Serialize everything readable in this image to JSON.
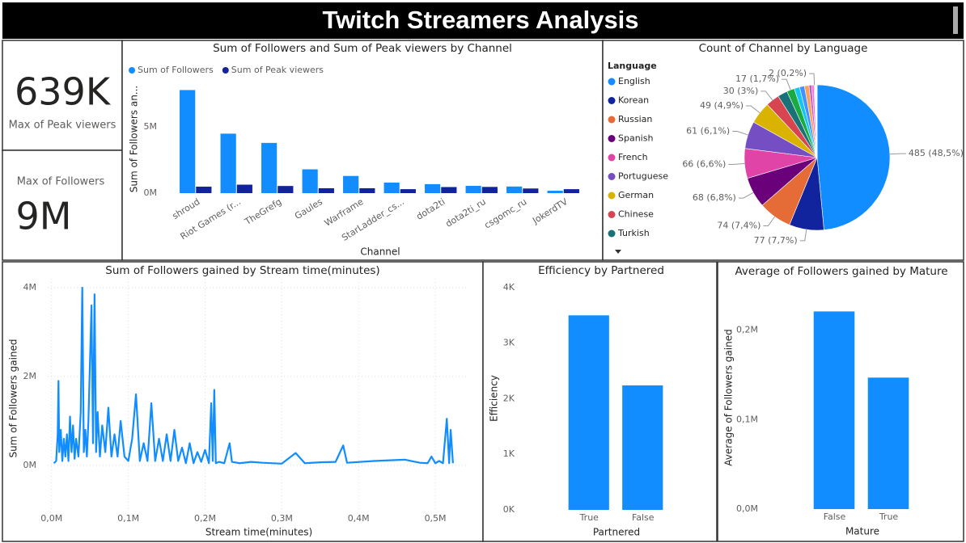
{
  "header": {
    "title": "Twitch Streamers Analysis"
  },
  "cards": [
    {
      "value": "639K",
      "label": "Max of Peak viewers"
    },
    {
      "value": "9M",
      "label": "Max of Followers"
    }
  ],
  "chart_data": [
    {
      "type": "bar",
      "title": "Sum of Followers and Sum of Peak viewers by Channel",
      "x_label": "Channel",
      "y_label": "Sum of Followers an...",
      "categories": [
        "shroud",
        "Riot Games (r...",
        "TheGrefg",
        "Gaules",
        "Warframe",
        "StarLadder_cs...",
        "dota2ti",
        "dota2ti_ru",
        "csgomc_ru",
        "JokerdTV"
      ],
      "series": [
        {
          "name": "Sum of Followers",
          "color": "#118DFF",
          "values": [
            7800000,
            4500000,
            3800000,
            1800000,
            1300000,
            800000,
            680000,
            550000,
            500000,
            180000
          ]
        },
        {
          "name": "Sum of Peak viewers",
          "color": "#12239E",
          "values": [
            490000,
            640000,
            540000,
            370000,
            370000,
            300000,
            460000,
            470000,
            350000,
            300000
          ]
        }
      ],
      "ylim": [
        0,
        8500000
      ],
      "yticks": [
        {
          "value": 0,
          "label": "0M"
        },
        {
          "value": 5000000,
          "label": "5M"
        }
      ],
      "legend": "top-left",
      "grid": false
    },
    {
      "type": "pie",
      "title": "Count of Channel by Language",
      "legend_title": "Language",
      "categories": [
        "English",
        "Korean",
        "Russian",
        "Spanish",
        "French",
        "Portuguese",
        "German",
        "Chinese",
        "Turkish",
        null,
        null,
        null,
        null,
        null,
        null,
        null,
        null,
        null,
        null,
        null,
        null
      ],
      "values": [
        485,
        77,
        74,
        68,
        66,
        61,
        49,
        30,
        22,
        17,
        12,
        11,
        10,
        6,
        5,
        2,
        1,
        1,
        1,
        1,
        1
      ],
      "value_labels": [
        "485 (48,5%)",
        "77 (7,7%)",
        "74 (7,4%)",
        "68 (6,8%)",
        "66 (6,6%)",
        "61 (6,1%)",
        "49 (4,9%)",
        "30 (3%)",
        null,
        "17 (1,7%)",
        null,
        null,
        null,
        null,
        null,
        "2 (0,2%)",
        null,
        null,
        null,
        null,
        null
      ],
      "colors": [
        "#118DFF",
        "#12239E",
        "#E66C37",
        "#6B007B",
        "#E044A7",
        "#744EC2",
        "#D9B300",
        "#D64550",
        "#197278",
        "#1AAB40",
        "#15C6F4",
        "#4092FF",
        "#FFA058",
        "#BE5DC9",
        "#F472D0",
        "#B5A1FF",
        "#C4A200",
        "#FF8080",
        "#00DBBC",
        "#5BD667",
        "#0091D5"
      ],
      "legend": "left"
    },
    {
      "type": "line",
      "title": "Sum of Followers gained by Stream time(minutes)",
      "x_label": "Stream time(minutes)",
      "y_label": "Sum of Followers gained",
      "color": "#118DFF",
      "x": [
        3000,
        6000,
        8000,
        9000,
        10000,
        12000,
        14000,
        16000,
        18000,
        20000,
        22000,
        24000,
        26000,
        28000,
        30000,
        32000,
        35000,
        38000,
        40000,
        42000,
        44000,
        46000,
        48000,
        52000,
        54000,
        56000,
        58000,
        60000,
        63000,
        66000,
        70000,
        74000,
        78000,
        82000,
        86000,
        90000,
        95000,
        100000,
        105000,
        110000,
        115000,
        120000,
        125000,
        130000,
        135000,
        140000,
        145000,
        150000,
        155000,
        160000,
        165000,
        170000,
        175000,
        180000,
        185000,
        190000,
        195000,
        200000,
        205000,
        208000,
        210000,
        212000,
        214000,
        218000,
        225000,
        232000,
        235000,
        245000,
        260000,
        275000,
        300000,
        318000,
        330000,
        350000,
        370000,
        380000,
        385000,
        420000,
        460000,
        480000,
        490000,
        495000,
        500000,
        505000,
        510000,
        515000,
        518000,
        520000,
        523000
      ],
      "values": [
        50000,
        100000,
        700000,
        1900000,
        300000,
        800000,
        100000,
        600000,
        200000,
        700000,
        100000,
        1100000,
        300000,
        900000,
        150000,
        600000,
        200000,
        1200000,
        4000000,
        300000,
        800000,
        200000,
        1000000,
        3600000,
        500000,
        3850000,
        300000,
        1200000,
        200000,
        900000,
        300000,
        1300000,
        200000,
        700000,
        200000,
        1000000,
        200000,
        100000,
        600000,
        1600000,
        100000,
        500000,
        100000,
        1400000,
        100000,
        600000,
        100000,
        700000,
        100000,
        800000,
        100000,
        400000,
        50000,
        500000,
        50000,
        300000,
        80000,
        350000,
        50000,
        1400000,
        100000,
        1700000,
        50000,
        80000,
        50000,
        500000,
        80000,
        50000,
        80000,
        60000,
        40000,
        280000,
        50000,
        70000,
        80000,
        450000,
        60000,
        100000,
        130000,
        60000,
        50000,
        200000,
        50000,
        100000,
        50000,
        1050000,
        50000,
        800000,
        50000
      ],
      "xlim": [
        -5000,
        540000
      ],
      "xticks": [
        {
          "value": 0,
          "label": "0,0M"
        },
        {
          "value": 100000,
          "label": "0,1M"
        },
        {
          "value": 200000,
          "label": "0,2M"
        },
        {
          "value": 300000,
          "label": "0,3M"
        },
        {
          "value": 400000,
          "label": "0,4M"
        },
        {
          "value": 500000,
          "label": "0,5M"
        }
      ],
      "ylim": [
        -1000000,
        4200000
      ],
      "yticks": [
        {
          "value": 0,
          "label": "0M"
        },
        {
          "value": 2000000,
          "label": "2M"
        },
        {
          "value": 4000000,
          "label": "4M"
        }
      ],
      "grid": true
    },
    {
      "type": "bar",
      "title": "Efficiency by Partnered",
      "x_label": "Partnered",
      "y_label": "Efficiency",
      "categories": [
        "True",
        "False"
      ],
      "values": [
        3500,
        2240
      ],
      "color": "#118DFF",
      "ylim": [
        0,
        4100
      ],
      "yticks": [
        {
          "value": 0,
          "label": "0K"
        },
        {
          "value": 1000,
          "label": "1K"
        },
        {
          "value": 2000,
          "label": "2K"
        },
        {
          "value": 3000,
          "label": "3K"
        },
        {
          "value": 4000,
          "label": "4K"
        }
      ],
      "grid": false
    },
    {
      "type": "bar",
      "title": "Average of Followers gained by Mature",
      "x_label": "Mature",
      "y_label": "Average of Followers gained",
      "categories": [
        "False",
        "True"
      ],
      "values": [
        221000,
        147000
      ],
      "color": "#118DFF",
      "ylim": [
        0,
        253000
      ],
      "yticks": [
        {
          "value": 0,
          "label": "0,0M"
        },
        {
          "value": 100000,
          "label": "0,1M"
        },
        {
          "value": 200000,
          "label": "0,2M"
        }
      ],
      "grid": false
    }
  ]
}
